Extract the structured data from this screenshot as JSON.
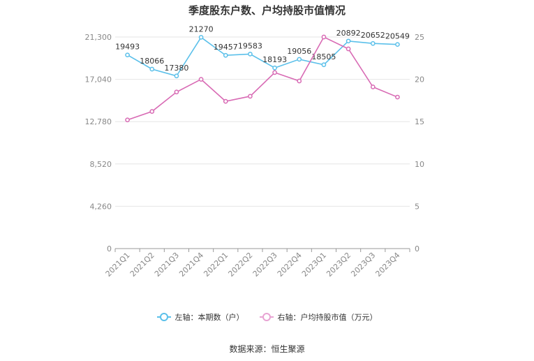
{
  "title": "季度股东户数、户均持股市值情况",
  "source": "数据来源：恒生聚源",
  "legend": {
    "left_label": "左轴：本期数（户）",
    "right_label": "右轴：户均持股市值（万元）"
  },
  "colors": {
    "left_series": "#5bc0ea",
    "right_series": "#d86ab4",
    "grid": "#e6e6e6",
    "axis": "#999999"
  },
  "chart_data": {
    "type": "line",
    "title": "季度股东户数、户均持股市值情况",
    "categories": [
      "2021Q1",
      "2021Q2",
      "2021Q3",
      "2021Q4",
      "2022Q1",
      "2022Q2",
      "2022Q3",
      "2022Q4",
      "2023Q1",
      "2023Q2",
      "2023Q3",
      "2023Q4"
    ],
    "left_axis": {
      "ticks": [
        "0",
        "4,260",
        "8,520",
        "12,780",
        "17,040",
        "21,300"
      ],
      "range": [
        0,
        21300
      ]
    },
    "right_axis": {
      "ticks": [
        "0",
        "5",
        "10",
        "15",
        "20",
        "25"
      ],
      "range": [
        0,
        25
      ]
    },
    "series": [
      {
        "name": "左轴：本期数（户）",
        "axis": "left",
        "values": [
          19493,
          18066,
          17380,
          21270,
          19457,
          19583,
          18193,
          19056,
          18505,
          20892,
          20652,
          20549
        ],
        "labels": [
          "19493",
          "18066",
          "17380",
          "21270",
          "19457",
          "19583",
          "18193",
          "19056",
          "18505",
          "20892",
          "20652",
          "20549"
        ]
      },
      {
        "name": "右轴：户均持股市值（万元）",
        "axis": "right",
        "values": [
          15.2,
          16.2,
          18.5,
          20.0,
          17.4,
          18.0,
          20.8,
          19.8,
          25.0,
          23.6,
          19.1,
          17.9
        ]
      }
    ],
    "grid": true,
    "legend_position": "bottom"
  }
}
